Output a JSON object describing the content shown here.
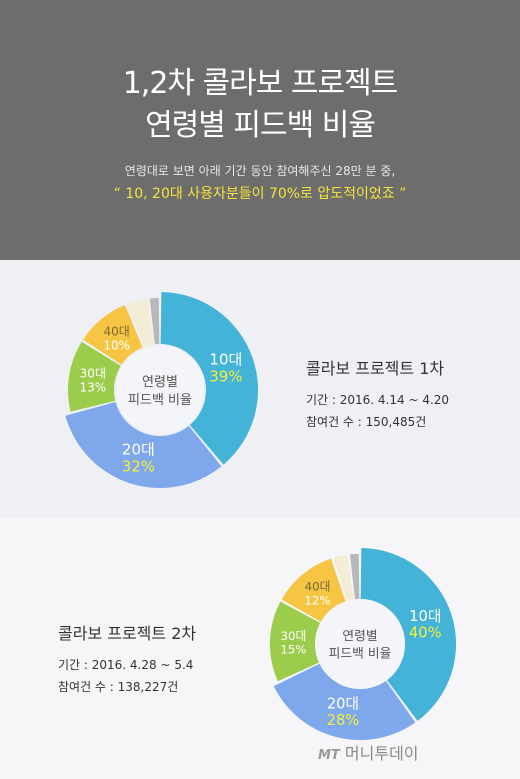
{
  "header": {
    "title_line1": "1,2차 콜라보 프로젝트",
    "title_line2": "연령별 피드백 비율",
    "subtitle": "연령대로 보면 아래 기간 동안 참여해주신 28만 분 중,",
    "highlight": "“ 10, 20대 사용자분들이 70%로 압도적이었죠 ”"
  },
  "colors": {
    "seg10": "#43b3d7",
    "seg20": "#7ea7ec",
    "seg30": "#9ccc4c",
    "seg40": "#f5c543",
    "seg50": "#f3ecd6",
    "segEtc": "#b8b8b8"
  },
  "chart_data": [
    {
      "type": "pie",
      "title": "콜라보 프로젝트 1차",
      "center_label": [
        "연령별",
        "피드백 비율"
      ],
      "period": "기간 : 2016. 4.14 ~ 4.20",
      "participants": "참여건 수 : 150,485건",
      "slices": [
        {
          "label": "10대",
          "value": 39,
          "value_label": "39%"
        },
        {
          "label": "20대",
          "value": 32,
          "value_label": "32%"
        },
        {
          "label": "30대",
          "value": 13,
          "value_label": "13%"
        },
        {
          "label": "40대",
          "value": 10,
          "value_label": "10%"
        },
        {
          "label": "",
          "value": 4,
          "value_label": ""
        },
        {
          "label": "",
          "value": 2,
          "value_label": ""
        }
      ]
    },
    {
      "type": "pie",
      "title": "콜라보 프로젝트 2차",
      "center_label": [
        "연령별",
        "피드백 비율"
      ],
      "period": "기간 : 2016. 4.28 ~ 5.4",
      "participants": "참여건 수 : 138,227건",
      "slices": [
        {
          "label": "10대",
          "value": 40,
          "value_label": "40%"
        },
        {
          "label": "20대",
          "value": 28,
          "value_label": "28%"
        },
        {
          "label": "30대",
          "value": 15,
          "value_label": "15%"
        },
        {
          "label": "40대",
          "value": 12,
          "value_label": "12%"
        },
        {
          "label": "",
          "value": 3,
          "value_label": ""
        },
        {
          "label": "",
          "value": 2,
          "value_label": ""
        }
      ]
    }
  ],
  "watermark": {
    "mt": "MT",
    "name": "머니투데이"
  }
}
